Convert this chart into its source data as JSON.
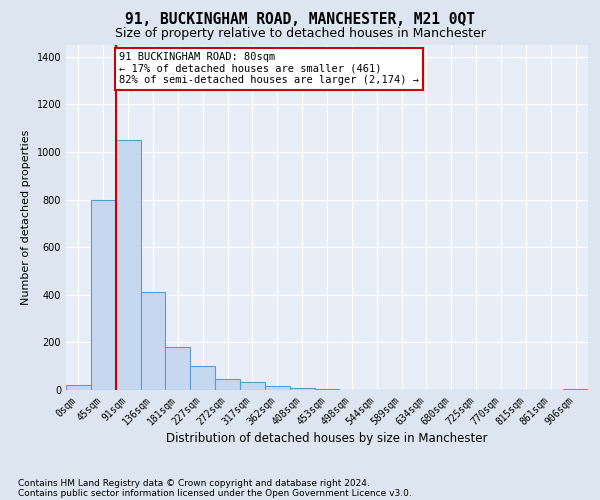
{
  "title": "91, BUCKINGHAM ROAD, MANCHESTER, M21 0QT",
  "subtitle": "Size of property relative to detached houses in Manchester",
  "xlabel": "Distribution of detached houses by size in Manchester",
  "ylabel": "Number of detached properties",
  "footnote1": "Contains HM Land Registry data © Crown copyright and database right 2024.",
  "footnote2": "Contains public sector information licensed under the Open Government Licence v3.0.",
  "bar_labels": [
    "0sqm",
    "45sqm",
    "91sqm",
    "136sqm",
    "181sqm",
    "227sqm",
    "272sqm",
    "317sqm",
    "362sqm",
    "408sqm",
    "453sqm",
    "498sqm",
    "544sqm",
    "589sqm",
    "634sqm",
    "680sqm",
    "725sqm",
    "770sqm",
    "815sqm",
    "861sqm",
    "906sqm"
  ],
  "bar_values": [
    20,
    800,
    1050,
    410,
    180,
    100,
    48,
    32,
    17,
    10,
    5,
    0,
    0,
    0,
    0,
    0,
    0,
    0,
    0,
    0,
    5
  ],
  "bar_color": "#c5d8f0",
  "bar_edge_color": "#5a9ad4",
  "red_line_x": 2,
  "highlight_color": "#cc0000",
  "ylim": [
    0,
    1450
  ],
  "yticks": [
    0,
    200,
    400,
    600,
    800,
    1000,
    1200,
    1400
  ],
  "annotation_line1": "91 BUCKINGHAM ROAD: 80sqm",
  "annotation_line2": "← 17% of detached houses are smaller (461)",
  "annotation_line3": "82% of semi-detached houses are larger (2,174) →",
  "annotation_box_color": "#cc0000",
  "bg_color": "#dde6f0",
  "plot_bg_color": "#e8eef7",
  "grid_color": "#ffffff",
  "title_fontsize": 10.5,
  "subtitle_fontsize": 9,
  "xlabel_fontsize": 8.5,
  "ylabel_fontsize": 8,
  "annotation_fontsize": 7.5,
  "tick_fontsize": 7,
  "footnote_fontsize": 6.5
}
